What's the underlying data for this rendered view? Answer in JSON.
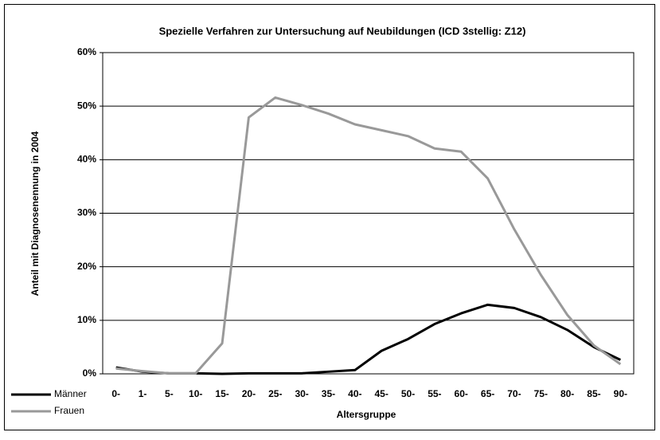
{
  "chart_data": {
    "type": "line",
    "title": "Spezielle Verfahren zur Untersuchung auf Neubildungen (ICD 3stellig: Z12)",
    "x_label": "Altersgruppe",
    "y_label": "Anteil mit Diagnosenennung in 2004",
    "categories": [
      "0-",
      "1-",
      "5-",
      "10-",
      "15-",
      "20-",
      "25-",
      "30-",
      "35-",
      "40-",
      "45-",
      "50-",
      "55-",
      "60-",
      "65-",
      "70-",
      "75-",
      "80-",
      "85-",
      "90-"
    ],
    "series": [
      {
        "name": "Männer",
        "color": "#000000",
        "values": [
          1.2,
          0.4,
          0.1,
          0.1,
          0,
          0.1,
          0.1,
          0.1,
          0.4,
          0.7,
          4.3,
          6.5,
          9.3,
          11.3,
          12.9,
          12.3,
          10.6,
          8.2,
          5.0,
          2.6
        ]
      },
      {
        "name": "Frauen",
        "color": "#999999",
        "values": [
          1.0,
          0.5,
          0.1,
          0.1,
          5.7,
          47.9,
          51.6,
          50.2,
          48.6,
          46.6,
          45.5,
          44.4,
          42.1,
          41.5,
          36.5,
          27,
          18.5,
          11,
          5.3,
          1.8
        ]
      }
    ],
    "ylim": [
      0,
      60
    ],
    "yticks": [
      {
        "value": 0,
        "label": "0%"
      },
      {
        "value": 10,
        "label": "10%"
      },
      {
        "value": 20,
        "label": "20%"
      },
      {
        "value": 30,
        "label": "30%"
      },
      {
        "value": 40,
        "label": "40%"
      },
      {
        "value": 50,
        "label": "50%"
      },
      {
        "value": 60,
        "label": "60%"
      }
    ],
    "grid": true,
    "legend": "bottom-left"
  }
}
